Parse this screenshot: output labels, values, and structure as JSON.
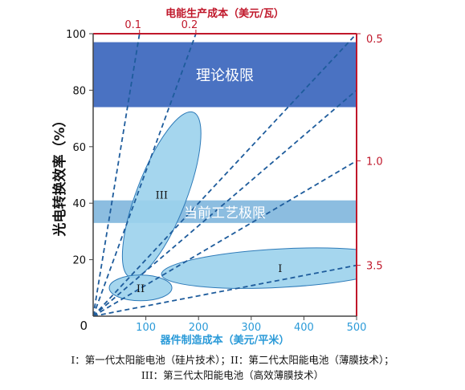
{
  "chart_data": {
    "type": "scatter",
    "x_axis": {
      "label": "器件制造成本（美元/平米）",
      "ticks": [
        0,
        100,
        200,
        300,
        400,
        500
      ],
      "range": [
        0,
        500
      ],
      "color": "#2a9ad8"
    },
    "y_axis": {
      "label": "光电转换效率（%）",
      "ticks": [
        20,
        40,
        60,
        80,
        100
      ],
      "range": [
        0,
        100
      ],
      "color": "#111111"
    },
    "top_axis": {
      "label": "电能生产成本（美元/瓦）",
      "ticks": [
        "0.1",
        "0.2"
      ],
      "color": "#c0182b"
    },
    "right_axis": {
      "ticks": [
        "0.5",
        "1.0",
        "3.5"
      ],
      "color": "#c0182b"
    },
    "cost_lines": [
      {
        "value": 0.1,
        "endpoint": [
          88,
          100
        ]
      },
      {
        "value": 0.2,
        "endpoint": [
          195,
          100
        ]
      },
      {
        "value": 0.5,
        "endpoint": [
          500,
          100
        ]
      },
      {
        "value": 1.0,
        "endpoint": [
          500,
          55
        ]
      },
      {
        "value": 3.5,
        "endpoint": [
          500,
          18
        ]
      }
    ],
    "extra_guides": [
      {
        "endpoint": [
          500,
          80
        ]
      }
    ],
    "bands": [
      {
        "label": "理论极限",
        "y_range": [
          74,
          97
        ],
        "color": "#4a72c2"
      },
      {
        "label": "当前工艺极限",
        "y_range": [
          33,
          41
        ],
        "color": "#8cbde0"
      }
    ],
    "regions": [
      {
        "label": "III",
        "center": [
          130,
          43
        ],
        "rx": 110,
        "ry": 31,
        "angle_deg": -69
      },
      {
        "label": "II",
        "center": [
          90,
          10
        ],
        "rx": 39,
        "ry": 16,
        "angle_deg": 0
      },
      {
        "label": "I",
        "center": [
          355,
          17
        ],
        "rx": 148,
        "ry": 24,
        "angle_deg": -3
      }
    ],
    "colors": {
      "region_fill": "#9bd2ec",
      "region_stroke": "#2d7ab8",
      "cost_line": "#1e5c9c",
      "frame": "#c0182b",
      "axis": "#444444"
    }
  },
  "captions": {
    "line1": "I：第一代太阳能电池（硅片技术）；II：第二代太阳能电池（薄膜技术）；",
    "line2": "III：第三代太阳能电池（高效薄膜技术）"
  }
}
